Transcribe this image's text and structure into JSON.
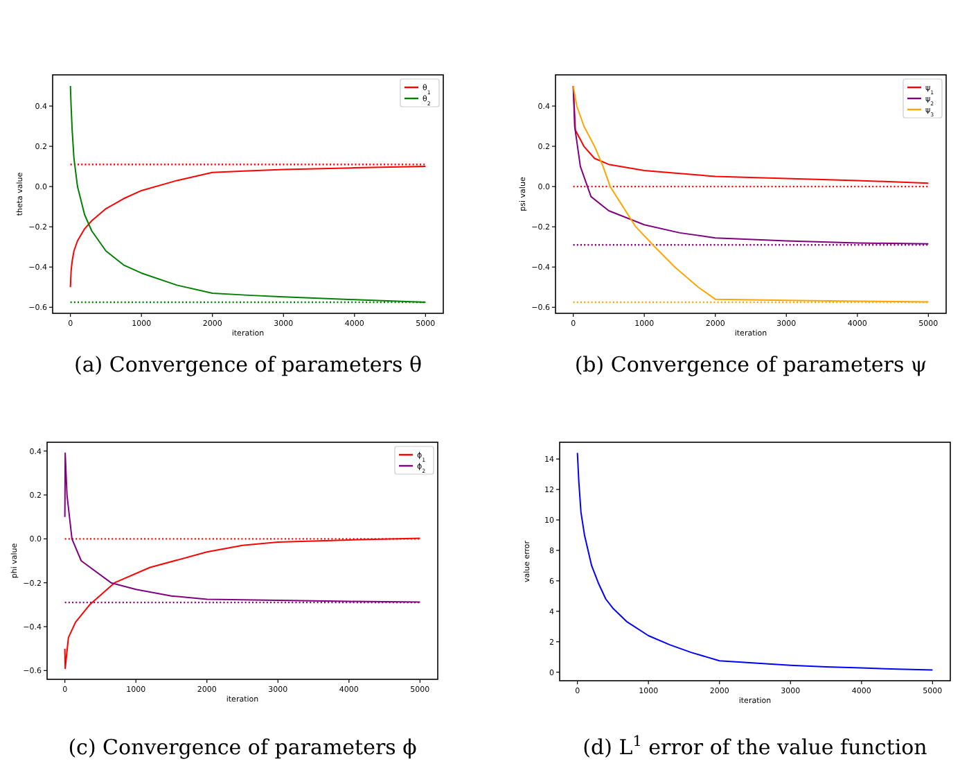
{
  "chart_data": [
    {
      "type": "line",
      "title": "(a) Convergence of parameters θ",
      "xlabel": "iteration",
      "ylabel": "theta value",
      "xlim": [
        -250,
        5250
      ],
      "ylim": [
        -0.63,
        0.555
      ],
      "xticks": [
        0,
        1000,
        2000,
        3000,
        4000,
        5000
      ],
      "yticks": [
        {
          "value": -0.6,
          "label": "−0.6"
        },
        {
          "value": -0.4,
          "label": "−0.4"
        },
        {
          "value": -0.2,
          "label": "−0.2"
        },
        {
          "value": 0,
          "label": "0.0"
        },
        {
          "value": 0.2,
          "label": "0.2"
        },
        {
          "value": 0.4,
          "label": "0.4"
        }
      ],
      "legend": "top right",
      "x": [
        0,
        10,
        25,
        50,
        100,
        200,
        300,
        500,
        750,
        1000,
        1500,
        2000,
        2500,
        3000,
        4000,
        5000
      ],
      "series": [
        {
          "name": "θ$_{1}$",
          "color": "#ff0000",
          "values": [
            -0.5,
            -0.42,
            -0.37,
            -0.32,
            -0.27,
            -0.21,
            -0.17,
            -0.11,
            -0.06,
            -0.02,
            0.03,
            0.07,
            0.078,
            0.085,
            0.093,
            0.1
          ]
        },
        {
          "name": "θ$_{2}$",
          "color": "#008000",
          "values": [
            0.5,
            0.4,
            0.28,
            0.14,
            0.0,
            -0.14,
            -0.22,
            -0.32,
            -0.39,
            -0.43,
            -0.49,
            -0.53,
            -0.54,
            -0.548,
            -0.562,
            -0.575
          ]
        }
      ],
      "ref_lines": [
        {
          "axis": "y",
          "value": 0.11,
          "color": "#ff0000",
          "line_style": "dotted"
        },
        {
          "axis": "y",
          "value": -0.575,
          "color": "#008000",
          "line_style": "dotted"
        }
      ]
    },
    {
      "type": "line",
      "title": "(b) Convergence of parameters ψ",
      "xlabel": "iteration",
      "ylabel": "psi value",
      "xlim": [
        -250,
        5250
      ],
      "ylim": [
        -0.63,
        0.555
      ],
      "xticks": [
        0,
        1000,
        2000,
        3000,
        4000,
        5000
      ],
      "yticks": [
        {
          "value": -0.6,
          "label": "−0.6"
        },
        {
          "value": -0.4,
          "label": "−0.4"
        },
        {
          "value": -0.2,
          "label": "−0.2"
        },
        {
          "value": 0,
          "label": "0.0"
        },
        {
          "value": 0.2,
          "label": "0.2"
        },
        {
          "value": 0.4,
          "label": "0.4"
        }
      ],
      "legend": "top right",
      "series": [
        {
          "name": "ψ$_{1}$",
          "color": "#ff0000",
          "x": [
            0,
            30,
            150,
            300,
            500,
            1000,
            1500,
            2000,
            3000,
            4000,
            5000
          ],
          "values": [
            0.5,
            0.28,
            0.2,
            0.14,
            0.11,
            0.08,
            0.065,
            0.05,
            0.04,
            0.03,
            0.017
          ]
        },
        {
          "name": "ψ$_{2}$",
          "color": "#800080",
          "x": [
            0,
            20,
            100,
            250,
            500,
            1000,
            1500,
            2000,
            3000,
            4000,
            5000
          ],
          "values": [
            0.5,
            0.3,
            0.1,
            -0.05,
            -0.12,
            -0.19,
            -0.23,
            -0.255,
            -0.27,
            -0.28,
            -0.285
          ]
        },
        {
          "name": "ψ$_{3}$",
          "color": "#ffa500",
          "x": [
            0,
            50,
            150,
            300,
            420,
            520,
            880,
            1150,
            1430,
            1760,
            2000,
            3000,
            4000,
            5000
          ],
          "values": [
            0.5,
            0.4,
            0.3,
            0.2,
            0.1,
            0.0,
            -0.2,
            -0.3,
            -0.4,
            -0.5,
            -0.56,
            -0.565,
            -0.57,
            -0.573
          ]
        }
      ],
      "ref_lines": [
        {
          "axis": "y",
          "value": 0,
          "color": "#ff0000",
          "line_style": "dotted"
        },
        {
          "axis": "y",
          "value": -0.29,
          "color": "#800080",
          "line_style": "dotted"
        },
        {
          "axis": "y",
          "value": -0.575,
          "color": "#ffa500",
          "line_style": "dotted"
        }
      ]
    },
    {
      "type": "line",
      "title": "(c) Convergence of parameters ϕ",
      "xlabel": "iteration",
      "ylabel": "phi value",
      "xlim": [
        -250,
        5250
      ],
      "ylim": [
        -0.64,
        0.44
      ],
      "xticks": [
        0,
        1000,
        2000,
        3000,
        4000,
        5000
      ],
      "yticks": [
        {
          "value": -0.6,
          "label": "−0.6"
        },
        {
          "value": -0.4,
          "label": "−0.4"
        },
        {
          "value": -0.2,
          "label": "−0.2"
        },
        {
          "value": 0,
          "label": "0.0"
        },
        {
          "value": 0.2,
          "label": "0.2"
        },
        {
          "value": 0.4,
          "label": "0.4"
        }
      ],
      "legend": "top right",
      "series": [
        {
          "name": "ϕ$_{1}$",
          "color": "#ff0000",
          "x": [
            0,
            5,
            50,
            150,
            350,
            700,
            1200,
            2000,
            2500,
            3000,
            4000,
            5000
          ],
          "values": [
            -0.5,
            -0.59,
            -0.45,
            -0.38,
            -0.3,
            -0.2,
            -0.13,
            -0.06,
            -0.03,
            -0.015,
            -0.005,
            0.003
          ]
        },
        {
          "name": "ϕ$_{2}$",
          "color": "#800080",
          "x": [
            0,
            5,
            30,
            100,
            230,
            650,
            1000,
            1500,
            2000,
            3000,
            4000,
            5000
          ],
          "values": [
            0.1,
            0.39,
            0.2,
            0.0,
            -0.1,
            -0.2,
            -0.23,
            -0.26,
            -0.275,
            -0.28,
            -0.285,
            -0.288
          ]
        }
      ],
      "ref_lines": [
        {
          "axis": "y",
          "value": 0,
          "color": "#ff0000",
          "line_style": "dotted"
        },
        {
          "axis": "y",
          "value": -0.29,
          "color": "#800080",
          "line_style": "dotted"
        }
      ]
    },
    {
      "type": "line",
      "title": "(d) L$^{1}$ error of the value function",
      "xlabel": "iteration",
      "ylabel": "value error",
      "xlim": [
        -250,
        5250
      ],
      "ylim": [
        -0.56,
        15.1
      ],
      "xticks": [
        0,
        1000,
        2000,
        3000,
        4000,
        5000
      ],
      "yticks": [
        0,
        2,
        4,
        6,
        8,
        10,
        12,
        14
      ],
      "series": [
        {
          "color": "#0000ff",
          "x": [
            0,
            20,
            50,
            100,
            200,
            300,
            400,
            500,
            700,
            1000,
            1300,
            1600,
            2000,
            2500,
            3000,
            3500,
            4000,
            4500,
            5000
          ],
          "values": [
            14.4,
            12.5,
            10.5,
            9,
            7,
            5.8,
            4.8,
            4.2,
            3.3,
            2.4,
            1.8,
            1.3,
            0.75,
            0.6,
            0.45,
            0.35,
            0.28,
            0.2,
            0.15
          ]
        }
      ]
    }
  ]
}
